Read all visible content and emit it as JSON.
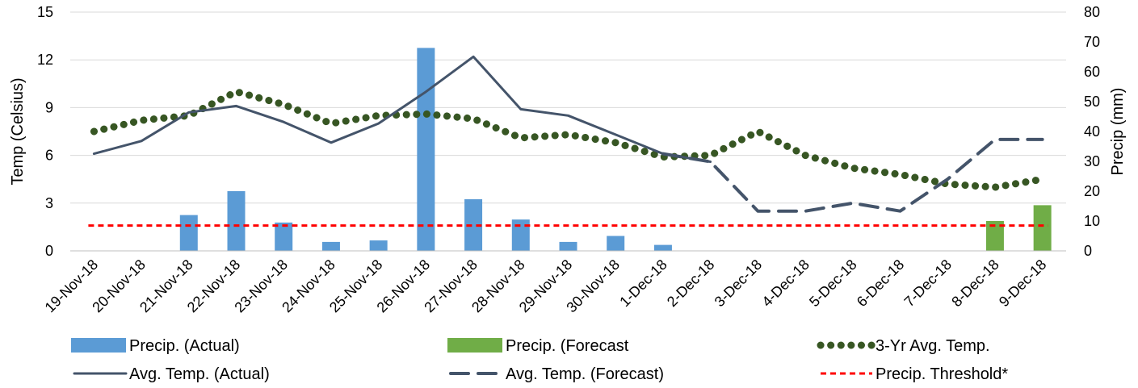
{
  "chart_data": {
    "type": "combo",
    "categories": [
      "19-Nov-18",
      "20-Nov-18",
      "21-Nov-18",
      "22-Nov-18",
      "23-Nov-18",
      "24-Nov-18",
      "25-Nov-18",
      "26-Nov-18",
      "27-Nov-18",
      "28-Nov-18",
      "29-Nov-18",
      "30-Nov-18",
      "1-Dec-18",
      "2-Dec-18",
      "3-Dec-18",
      "4-Dec-18",
      "5-Dec-18",
      "6-Dec-18",
      "7-Dec-18",
      "8-Dec-18",
      "9-Dec-18"
    ],
    "ylabel": "Temp  (Celsius)",
    "y2label": "Precip (mm)",
    "ylim": [
      0,
      15
    ],
    "yticks": [
      0,
      3,
      6,
      9,
      12,
      15
    ],
    "y2lim": [
      0,
      80
    ],
    "y2ticks": [
      0,
      10,
      20,
      30,
      40,
      50,
      60,
      70,
      80
    ],
    "grid": true,
    "legend_position": "bottom",
    "series": [
      {
        "name": "Precip. (Actual)",
        "type": "bar",
        "axis": "right",
        "color": "#5B9BD5",
        "values": [
          0,
          0,
          12,
          20,
          9.5,
          3,
          3.5,
          68,
          17.3,
          10.5,
          3,
          5,
          2,
          null,
          null,
          null,
          null,
          null,
          null,
          null,
          null
        ]
      },
      {
        "name": "Precip. (Forecast",
        "type": "bar",
        "axis": "right",
        "color": "#70AD47",
        "values": [
          null,
          null,
          null,
          null,
          null,
          null,
          null,
          null,
          null,
          null,
          null,
          null,
          null,
          null,
          null,
          null,
          null,
          null,
          null,
          10,
          15.3
        ]
      },
      {
        "name": "3-Yr Avg. Temp.",
        "type": "line",
        "style": "dotted",
        "axis": "left",
        "color": "#375623",
        "values": [
          7.5,
          8.2,
          8.5,
          10,
          9.2,
          8.0,
          8.5,
          8.6,
          8.3,
          7.1,
          7.3,
          6.8,
          5.9,
          6.0,
          7.5,
          6.0,
          5.2,
          4.8,
          4.2,
          4.0,
          4.5
        ]
      },
      {
        "name": "Avg. Temp. (Actual)",
        "type": "line",
        "style": "solid",
        "axis": "left",
        "color": "#44546A",
        "values": [
          6.1,
          6.9,
          8.7,
          9.1,
          8.1,
          6.8,
          8.0,
          10.0,
          12.2,
          8.9,
          8.5,
          7.3,
          6.1,
          5.6,
          null,
          null,
          null,
          null,
          null,
          null,
          null
        ]
      },
      {
        "name": "Avg. Temp. (Forecast)",
        "type": "line",
        "style": "dashed",
        "axis": "left",
        "color": "#44546A",
        "values": [
          null,
          null,
          null,
          null,
          null,
          null,
          null,
          null,
          null,
          null,
          null,
          null,
          6.1,
          5.6,
          2.5,
          2.5,
          3.0,
          2.5,
          4.5,
          7.0,
          7.0
        ]
      },
      {
        "name": "Precip. Threshold*",
        "type": "line",
        "style": "short-dashed",
        "axis": "right",
        "color": "#FF0000",
        "values": [
          8.5,
          8.5,
          8.5,
          8.5,
          8.5,
          8.5,
          8.5,
          8.5,
          8.5,
          8.5,
          8.5,
          8.5,
          8.5,
          8.5,
          8.5,
          8.5,
          8.5,
          8.5,
          8.5,
          8.5,
          8.5
        ]
      }
    ],
    "legend_order": [
      0,
      1,
      2,
      3,
      4,
      5
    ]
  }
}
